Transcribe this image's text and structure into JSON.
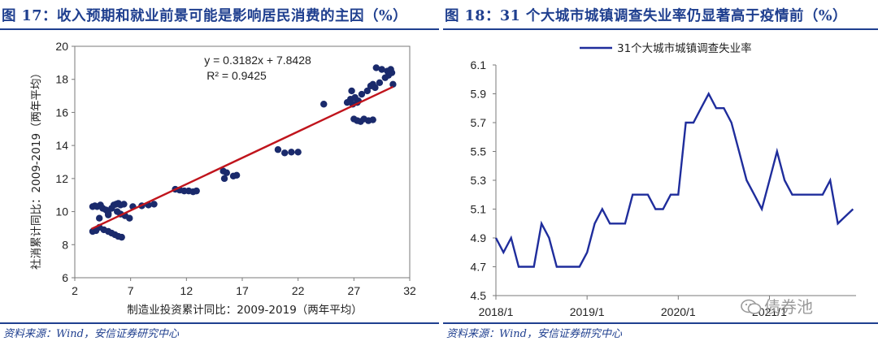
{
  "left": {
    "title": "图 17：收入预期和就业前景可能是影响居民消费的主因（%）",
    "source": "资料来源：Wind，安信证券研究中心",
    "equation": "y = 0.3182x + 7.8428",
    "r2": "R² = 0.9425"
  },
  "right": {
    "title": "图 18：31 个大城市城镇调查失业率仍显著高于疫情前（%）",
    "source": "资料来源：Wind，安信证券研究中心"
  },
  "watermark": "债券池",
  "colors": {
    "title": "#1f3f8f",
    "scatter": "#1a2a6c",
    "trend": "#c0141c",
    "line": "#1f2d9c"
  },
  "chart_data": [
    {
      "type": "scatter",
      "title": "",
      "xlabel": "制造业投资累计同比：2009-2019（两年平均）",
      "ylabel": "社消累计同比：2009-2019（两年平均）",
      "xlim": [
        2,
        32
      ],
      "ylim": [
        6,
        20
      ],
      "xticks": [
        "2",
        "7",
        "12",
        "17",
        "22",
        "27",
        "32"
      ],
      "yticks": [
        "6",
        "8",
        "10",
        "12",
        "14",
        "16",
        "18",
        "20"
      ],
      "trendline": {
        "slope": 0.3182,
        "intercept": 7.8428,
        "x_range": [
          3.5,
          30.5
        ]
      },
      "points": [
        [
          3.6,
          10.3
        ],
        [
          3.8,
          10.35
        ],
        [
          4.0,
          10.3
        ],
        [
          4.3,
          10.4
        ],
        [
          4.5,
          10.2
        ],
        [
          4.8,
          10.1
        ],
        [
          5.0,
          9.9
        ],
        [
          5.3,
          10.2
        ],
        [
          5.5,
          10.4
        ],
        [
          5.7,
          10.45
        ],
        [
          5.9,
          10.5
        ],
        [
          6.1,
          10.4
        ],
        [
          6.4,
          10.45
        ],
        [
          5.8,
          10.0
        ],
        [
          6.1,
          9.85
        ],
        [
          6.5,
          9.75
        ],
        [
          6.9,
          9.6
        ],
        [
          5.0,
          9.8
        ],
        [
          4.2,
          9.6
        ],
        [
          3.6,
          8.8
        ],
        [
          3.9,
          8.85
        ],
        [
          4.2,
          9.05
        ],
        [
          4.6,
          8.9
        ],
        [
          5.0,
          8.8
        ],
        [
          5.3,
          8.7
        ],
        [
          5.6,
          8.6
        ],
        [
          5.9,
          8.5
        ],
        [
          6.2,
          8.45
        ],
        [
          7.2,
          10.3
        ],
        [
          8.0,
          10.35
        ],
        [
          8.6,
          10.4
        ],
        [
          9.1,
          10.45
        ],
        [
          11.0,
          11.35
        ],
        [
          11.4,
          11.3
        ],
        [
          11.8,
          11.25
        ],
        [
          12.2,
          11.25
        ],
        [
          12.6,
          11.2
        ],
        [
          12.9,
          11.25
        ],
        [
          15.3,
          12.45
        ],
        [
          15.6,
          12.35
        ],
        [
          15.4,
          12.0
        ],
        [
          16.2,
          12.15
        ],
        [
          16.5,
          12.2
        ],
        [
          20.2,
          13.75
        ],
        [
          20.8,
          13.55
        ],
        [
          21.4,
          13.6
        ],
        [
          22.0,
          13.6
        ],
        [
          24.3,
          16.5
        ],
        [
          26.4,
          16.6
        ],
        [
          26.7,
          16.8
        ],
        [
          26.9,
          16.5
        ],
        [
          27.1,
          16.9
        ],
        [
          27.3,
          16.6
        ],
        [
          27.4,
          16.7
        ],
        [
          26.8,
          17.3
        ],
        [
          27.7,
          17.1
        ],
        [
          28.2,
          17.3
        ],
        [
          28.5,
          17.6
        ],
        [
          28.7,
          17.7
        ],
        [
          28.9,
          17.5
        ],
        [
          29.3,
          17.8
        ],
        [
          29.8,
          18.1
        ],
        [
          30.1,
          18.25
        ],
        [
          30.4,
          18.4
        ],
        [
          29.0,
          18.7
        ],
        [
          29.5,
          18.6
        ],
        [
          30.0,
          18.5
        ],
        [
          30.3,
          18.6
        ],
        [
          27.0,
          15.6
        ],
        [
          27.3,
          15.5
        ],
        [
          27.6,
          15.45
        ],
        [
          27.9,
          15.6
        ],
        [
          28.3,
          15.5
        ],
        [
          28.7,
          15.55
        ],
        [
          30.5,
          17.7
        ]
      ]
    },
    {
      "type": "line",
      "title": "",
      "series_name": "31个大城市城镇调查失业率",
      "ylim": [
        4.5,
        6.1
      ],
      "yticks": [
        "4.5",
        "4.7",
        "4.9",
        "5.1",
        "5.3",
        "5.5",
        "5.7",
        "5.9",
        "6.1"
      ],
      "xtick_labels": [
        "2018/1",
        "2019/1",
        "2020/1",
        "2021/1"
      ],
      "x": [
        "2018/1",
        "2018/2",
        "2018/3",
        "2018/4",
        "2018/5",
        "2018/6",
        "2018/7",
        "2018/8",
        "2018/9",
        "2018/10",
        "2018/11",
        "2018/12",
        "2019/1",
        "2019/2",
        "2019/3",
        "2019/4",
        "2019/5",
        "2019/6",
        "2019/7",
        "2019/8",
        "2019/9",
        "2019/10",
        "2019/11",
        "2019/12",
        "2020/1",
        "2020/2",
        "2020/3",
        "2020/4",
        "2020/5",
        "2020/6",
        "2020/7",
        "2020/8",
        "2020/9",
        "2020/10",
        "2020/11",
        "2020/12",
        "2021/1",
        "2021/2",
        "2021/3",
        "2021/4",
        "2021/5",
        "2021/6",
        "2021/7",
        "2021/8",
        "2021/9",
        "2021/10",
        "2021/11",
        "2021/12"
      ],
      "values": [
        4.9,
        4.8,
        4.9,
        4.7,
        4.7,
        4.7,
        5.0,
        4.9,
        4.7,
        4.7,
        4.7,
        4.7,
        4.8,
        5.0,
        5.1,
        5.0,
        5.0,
        5.0,
        5.2,
        5.2,
        5.2,
        5.1,
        5.1,
        5.2,
        5.2,
        5.7,
        5.7,
        5.8,
        5.9,
        5.8,
        5.8,
        5.7,
        5.5,
        5.3,
        5.2,
        5.1,
        5.3,
        5.5,
        5.3,
        5.2,
        5.2,
        5.2,
        5.2,
        5.2,
        5.3,
        5.0,
        5.05,
        5.1
      ]
    }
  ]
}
